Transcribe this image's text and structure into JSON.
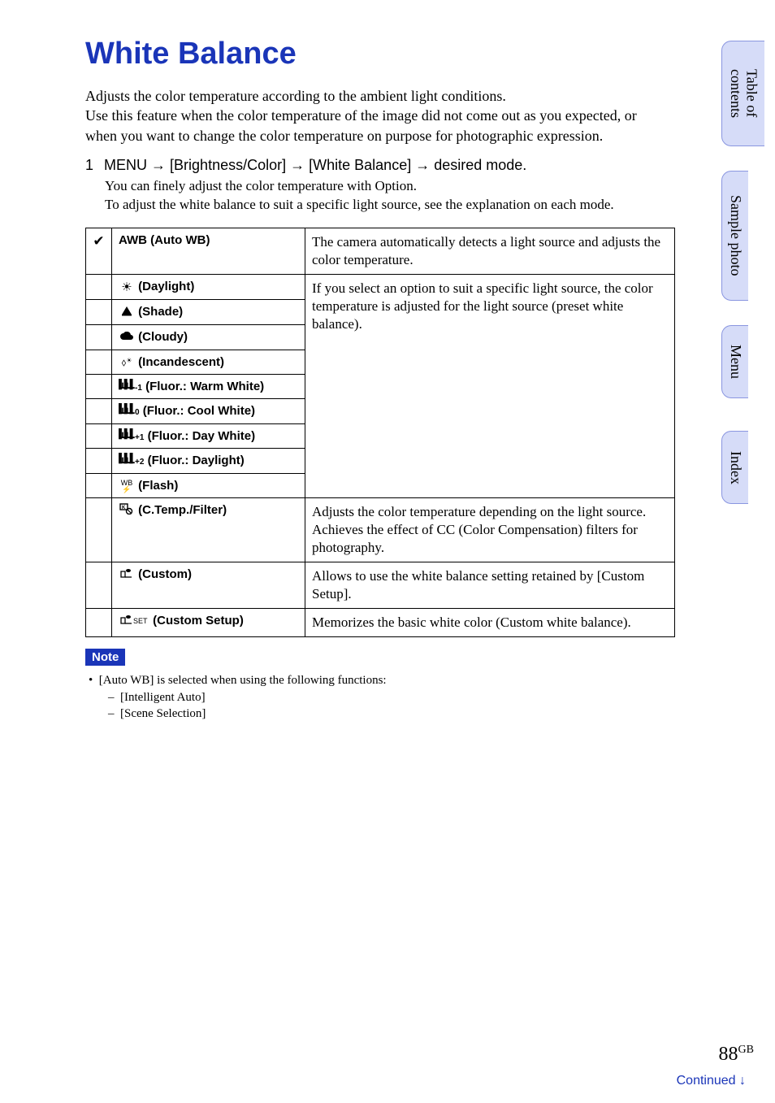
{
  "title": "White Balance",
  "intro": "Adjusts the color temperature according to the ambient light conditions.\nUse this feature when the color temperature of the image did not come out as you expected, or when you want to change the color temperature on purpose for photographic expression.",
  "step": {
    "num": "1",
    "text_parts": {
      "menu": "MENU",
      "arrow": "→",
      "p1": "[Brightness/Color]",
      "p2": "[White Balance]",
      "p3": "desired mode."
    },
    "body1": "You can finely adjust the color temperature with Option.",
    "body2": "To adjust the white balance to suit a specific light source, see the explanation on each mode."
  },
  "table": {
    "rows": [
      {
        "icon": "check",
        "label": "AWB (Auto WB)",
        "desc": "The camera automatically detects a light source and adjusts the color temperature."
      },
      {
        "icon": "sun",
        "label": "(Daylight)"
      },
      {
        "icon": "shade",
        "label": "(Shade)"
      },
      {
        "icon": "cloud",
        "label": "(Cloudy)"
      },
      {
        "icon": "bulb",
        "label": "(Incandescent)"
      },
      {
        "icon": "fluor",
        "sub": "-1",
        "label": "(Fluor.: Warm White)"
      },
      {
        "icon": "fluor",
        "sub": "0",
        "label": "(Fluor.: Cool White)"
      },
      {
        "icon": "fluor",
        "sub": "+1",
        "label": "(Fluor.: Day White)"
      },
      {
        "icon": "fluor",
        "sub": "+2",
        "label": "(Fluor.: Daylight)"
      },
      {
        "icon": "flash",
        "label": "(Flash)"
      },
      {
        "icon": "kfilter",
        "label": "(C.Temp./Filter)",
        "desc": "Adjusts the color temperature depending on the light source. Achieves the effect of CC (Color Compensation) filters for photography."
      },
      {
        "icon": "custom",
        "label": "(Custom)",
        "desc": "Allows to use the white balance setting retained by [Custom Setup]."
      },
      {
        "icon": "customset",
        "label": "(Custom Setup)",
        "desc": "Memorizes the basic white color (Custom white balance)."
      }
    ],
    "preset_desc": "If you select an option to suit a specific light source, the color temperature is adjusted for the light source (preset white balance)."
  },
  "note": {
    "label": "Note",
    "bullet": "[Auto WB] is selected when using the following functions:",
    "items": [
      "[Intelligent Auto]",
      "[Scene Selection]"
    ]
  },
  "tabs": [
    "Table of contents",
    "Sample photo",
    "Menu",
    "Index"
  ],
  "page_number": "88",
  "page_suffix": "GB",
  "continued": "Continued ↓",
  "colors": {
    "accent": "#1a35b8",
    "tab_bg": "#d6dcf8",
    "tab_border": "#8a96e0"
  }
}
